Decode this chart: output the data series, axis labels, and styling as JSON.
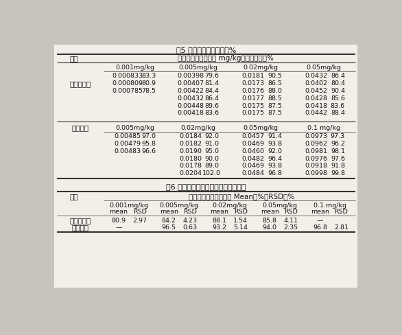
{
  "title5": "表5 扇贝样品加标回收率%",
  "title6": "表6 扇贝样品平均加标回收率和精密度",
  "page_bg": "#c8c4bc",
  "table_bg": "#f0ede8",
  "t5_header1": "组分",
  "t5_header2": "加标含量、测定含量 mg/kg、加标回收率%",
  "t5_sub_headers_amp": [
    "0.001mg/kg",
    "0.005mg/kg",
    "0.02mg/kg",
    "0.05mg/kg"
  ],
  "t5_sub_headers_amox": [
    "0.005mg/kg",
    "0.02mg/kg",
    "0.05mg/kg",
    "0.1 mg/kg"
  ],
  "t5_amp_label": "氨苄青霉素",
  "t5_amp_rows": [
    [
      "0.000833",
      "83.3",
      "0.00398",
      "79.6",
      "0.0181",
      "90.5",
      "0.0432",
      "86.4"
    ],
    [
      "0.000809",
      "80.9",
      "0.00407",
      "81.4",
      "0.0173",
      "86.5",
      "0.0402",
      "80.4"
    ],
    [
      "0.000785",
      "78.5",
      "0.00422",
      "84.4",
      "0.0176",
      "88.0",
      "0.0452",
      "90.4"
    ],
    [
      "",
      "",
      "0.00432",
      "86.4",
      "0.0177",
      "88.5",
      "0.0428",
      "85.6"
    ],
    [
      "",
      "",
      "0.00448",
      "89.6",
      "0.0175",
      "87.5",
      "0.0418",
      "83.6"
    ],
    [
      "",
      "",
      "0.00418",
      "83.6",
      "0.0175",
      "87.5",
      "0.0442",
      "88.4"
    ]
  ],
  "t5_amox_label": "阿莫西林",
  "t5_amox_rows": [
    [
      "0.00485",
      "97.0",
      "0.0184",
      "92.0",
      "0.0457",
      "91.4",
      "0.0973",
      "97.3"
    ],
    [
      "0.00479",
      "95.8",
      "0.0182",
      "91.0",
      "0.0469",
      "93.8",
      "0.0962",
      "96.2"
    ],
    [
      "0.00483",
      "96.6",
      "0.0190",
      "95.0",
      "0.0460",
      "92.0",
      "0.0981",
      "98.1"
    ],
    [
      "",
      "",
      "0.0180",
      "90.0",
      "0.0482",
      "96.4",
      "0.0976",
      "97.6"
    ],
    [
      "",
      "",
      "0.0178",
      "89.0",
      "0.0469",
      "93.8",
      "0.0918",
      "91.8"
    ],
    [
      "",
      "",
      "0.0204",
      "102.0",
      "0.0484",
      "96.8",
      "0.0998",
      "99.8"
    ]
  ],
  "t6_header1": "组分",
  "t6_header2": "加标含量，平均回收率 Mean，%，RSD，%",
  "t6_col_headers": [
    "0.001mg/kg",
    "0.005mg/kg",
    "0.02mg/kg",
    "0.05mg/kg",
    "0.1 mg/kg"
  ],
  "t6_subheaders": [
    "mean",
    "RSD",
    "mean",
    "RSD",
    "mean",
    "RSD",
    "mean",
    "RSD",
    "mean",
    "RSD"
  ],
  "t6_amp_label": "氨苄青霉素",
  "t6_amp_data": [
    "80.9",
    "2.97",
    "84.2",
    "4.23",
    "88.1",
    "1.54",
    "85.8",
    "4.11",
    "—",
    ""
  ],
  "t6_amox_label": "阿莫西林",
  "t6_amox_data": [
    "—",
    "",
    "96.5",
    "0.63",
    "93.2",
    "5.14",
    "94.0",
    "2.35",
    "96.8",
    "2.81"
  ]
}
